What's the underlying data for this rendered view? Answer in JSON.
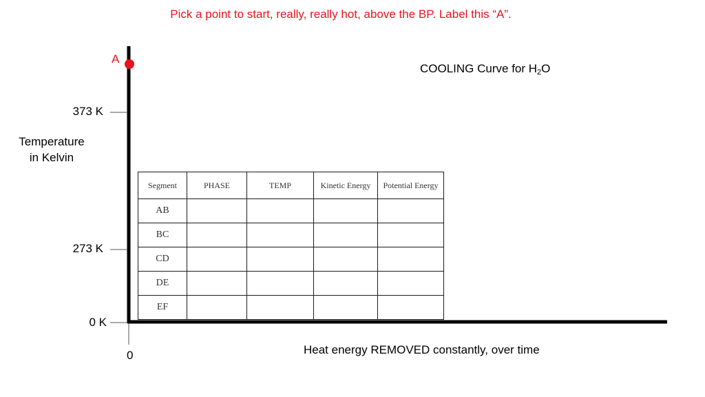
{
  "instruction": "Pick a point to start, really, really hot, above the BP.  Label this “A”.",
  "point_label": "A",
  "title": {
    "main": "COOLING Curve for H",
    "subscript": "2",
    "suffix": "O"
  },
  "y_axis": {
    "label_line1": "Temperature",
    "label_line2": "in Kelvin",
    "ticks": [
      "373 K",
      "273 K",
      "0 K"
    ]
  },
  "x_axis": {
    "label": "Heat energy REMOVED constantly, over time",
    "origin": "0"
  },
  "table": {
    "headers": [
      "Segment",
      "PHASE",
      "TEMP",
      "Kinetic Energy",
      "Potential Energy"
    ],
    "rows": [
      "AB",
      "BC",
      "CD",
      "DE",
      "EF"
    ]
  },
  "colors": {
    "accent_red": "#e8141c",
    "axis": "#000000"
  }
}
